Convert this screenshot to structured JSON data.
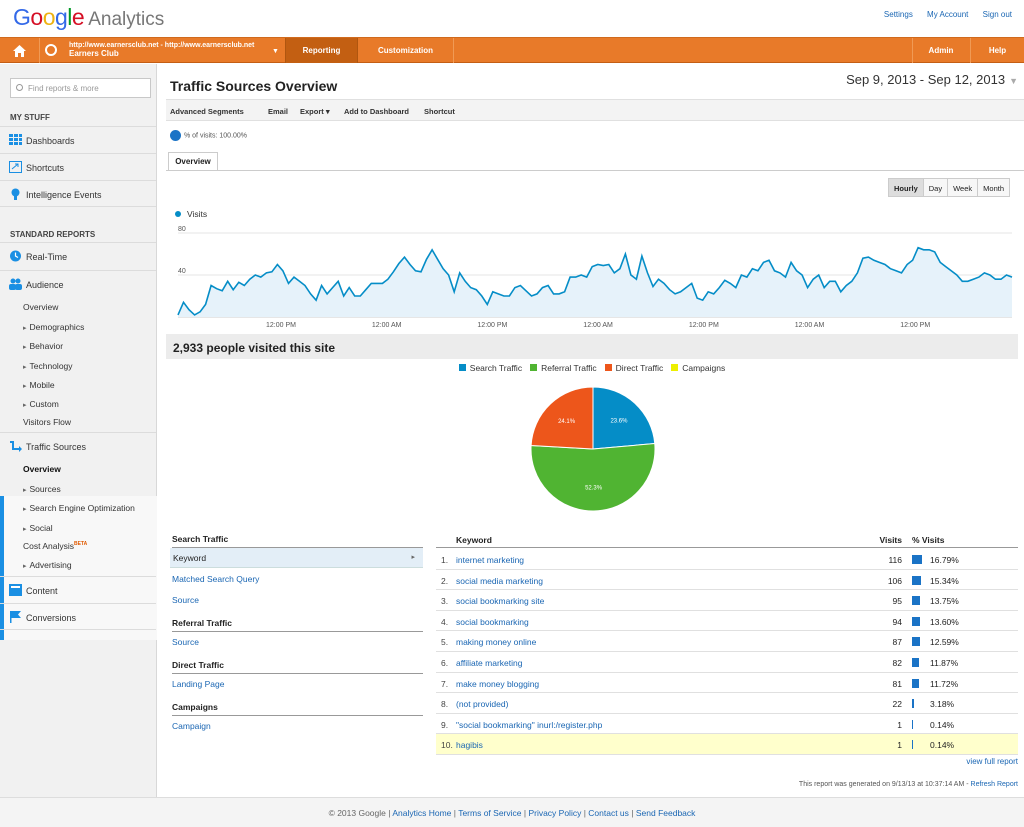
{
  "brand": {
    "google": "Google",
    "product": "Analytics"
  },
  "top_links": {
    "settings": "Settings",
    "my_account": "My Account",
    "sign_out": "Sign out"
  },
  "nav": {
    "account_url": "http://www.earnersclub.net - http://www.earnersclub.net",
    "account_name": "Earners Club",
    "reporting": "Reporting",
    "customization": "Customization",
    "admin": "Admin",
    "help": "Help"
  },
  "sidebar": {
    "search_placeholder": "Find reports & more",
    "my_stuff": "MY STUFF",
    "dashboards": "Dashboards",
    "shortcuts": "Shortcuts",
    "intelligence": "Intelligence Events",
    "standard_reports": "STANDARD REPORTS",
    "realtime": "Real-Time",
    "audience": "Audience",
    "audience_items": [
      "Overview",
      "Demographics",
      "Behavior",
      "Technology",
      "Mobile",
      "Custom",
      "Visitors Flow"
    ],
    "traffic_sources": "Traffic Sources",
    "ts_items": [
      "Overview",
      "Sources",
      "Search Engine Optimization",
      "Social",
      "Cost Analysis",
      "Advertising"
    ],
    "beta": "BETA",
    "content": "Content",
    "conversions": "Conversions"
  },
  "main": {
    "title": "Traffic Sources Overview",
    "date_range": "Sep 9, 2013 - Sep 12, 2013",
    "toolbar": {
      "segments": "Advanced Segments",
      "email": "Email",
      "export": "Export",
      "add_dashboard": "Add to Dashboard",
      "shortcut": "Shortcut"
    },
    "segment_label": "% of visits: 100.00%",
    "overview_tab": "Overview",
    "granularity": [
      "Hourly",
      "Day",
      "Week",
      "Month"
    ],
    "visits_summary": "2,933 people visited this site"
  },
  "chart_data": [
    {
      "type": "area",
      "series": [
        {
          "name": "Visits",
          "values": [
            2,
            14,
            7,
            2,
            5,
            12,
            30,
            27,
            25,
            34,
            26,
            33,
            30,
            36,
            40,
            38,
            42,
            43,
            50,
            44,
            32,
            38,
            34,
            30,
            22,
            16,
            30,
            22,
            28,
            34,
            20,
            28,
            20,
            20,
            26,
            32,
            32,
            32,
            36,
            43,
            51,
            57,
            50,
            44,
            43,
            55,
            64,
            55,
            46,
            40,
            24,
            42,
            34,
            28,
            26,
            20,
            12,
            24,
            22,
            20,
            20,
            28,
            30,
            25,
            20,
            22,
            28,
            30,
            22,
            22,
            24,
            38,
            38,
            40,
            38,
            48,
            50,
            49,
            50,
            42,
            46,
            60,
            40,
            36,
            58,
            42,
            29,
            36,
            32,
            26,
            22,
            24,
            28,
            32,
            18,
            16,
            24,
            22,
            28,
            35,
            32,
            28,
            40,
            38,
            46,
            44,
            52,
            54,
            44,
            42,
            38,
            52,
            44,
            40,
            28,
            36,
            40,
            28,
            34,
            34,
            24,
            30,
            34,
            42,
            56,
            57,
            54,
            52,
            50,
            46,
            44,
            42,
            50,
            54,
            66,
            64,
            64,
            62,
            52,
            48,
            44,
            40,
            34,
            34,
            36,
            38,
            42,
            40,
            36,
            36,
            40,
            38
          ]
        }
      ],
      "x_ticks": [
        "12:00 PM",
        "12:00 AM",
        "12:00 PM",
        "12:00 AM",
        "12:00 PM",
        "12:00 AM",
        "12:00 PM"
      ],
      "y_ticks": [
        80,
        40
      ],
      "ylim": [
        0,
        80
      ],
      "color": "#058dc7"
    },
    {
      "type": "pie",
      "categories": [
        "Search Traffic",
        "Referral Traffic",
        "Direct Traffic",
        "Campaigns"
      ],
      "values": [
        23.6,
        52.3,
        24.1,
        0
      ],
      "labels": [
        "23.6%",
        "52.3%",
        "24.1%"
      ],
      "colors": [
        "#058dc7",
        "#50b432",
        "#ed561b",
        "#edef00"
      ]
    }
  ],
  "dimensions": {
    "search_traffic": "Search Traffic",
    "keyword": "Keyword",
    "matched_query": "Matched Search Query",
    "source": "Source",
    "referral_traffic": "Referral Traffic",
    "ref_source": "Source",
    "direct_traffic": "Direct Traffic",
    "landing_page": "Landing Page",
    "campaigns": "Campaigns",
    "campaign": "Campaign"
  },
  "keyword_table": {
    "headers": {
      "keyword": "Keyword",
      "visits": "Visits",
      "pct": "% Visits"
    },
    "rows": [
      {
        "n": "1.",
        "kw": "internet marketing",
        "visits": "116",
        "pct": "16.79%",
        "frac": 0.1679
      },
      {
        "n": "2.",
        "kw": "social media marketing",
        "visits": "106",
        "pct": "15.34%",
        "frac": 0.1534
      },
      {
        "n": "3.",
        "kw": "social bookmarking site",
        "visits": "95",
        "pct": "13.75%",
        "frac": 0.1375
      },
      {
        "n": "4.",
        "kw": "social bookmarking",
        "visits": "94",
        "pct": "13.60%",
        "frac": 0.136
      },
      {
        "n": "5.",
        "kw": "making money online",
        "visits": "87",
        "pct": "12.59%",
        "frac": 0.1259
      },
      {
        "n": "6.",
        "kw": "affiliate marketing",
        "visits": "82",
        "pct": "11.87%",
        "frac": 0.1187
      },
      {
        "n": "7.",
        "kw": "make money blogging",
        "visits": "81",
        "pct": "11.72%",
        "frac": 0.1172
      },
      {
        "n": "8.",
        "kw": "(not provided)",
        "visits": "22",
        "pct": "3.18%",
        "frac": 0.0318
      },
      {
        "n": "9.",
        "kw": "\"social bookmarking\" inurl:/register.php",
        "visits": "1",
        "pct": "0.14%",
        "frac": 0.0014
      },
      {
        "n": "10.",
        "kw": "hagibis",
        "visits": "1",
        "pct": "0.14%",
        "frac": 0.0014
      }
    ],
    "view_full": "view full report",
    "generated": "This report was generated on 9/13/13 at 10:37:14 AM - ",
    "refresh": "Refresh Report"
  },
  "footer": {
    "copyright": "© 2013 Google",
    "home": "Analytics Home",
    "tos": "Terms of Service",
    "privacy": "Privacy Policy",
    "contact": "Contact us",
    "feedback": "Send Feedback"
  }
}
